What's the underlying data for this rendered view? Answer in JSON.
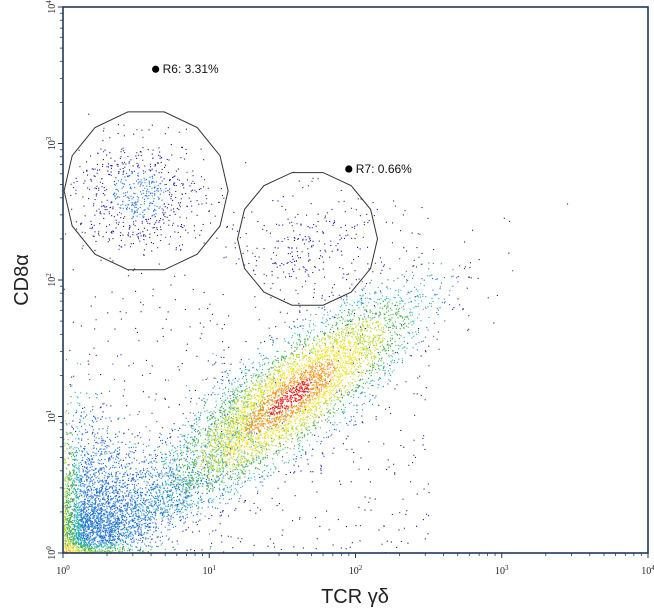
{
  "chart_data": {
    "type": "scatter",
    "subtype": "flow-cytometry density dot plot",
    "title": "",
    "xlabel": "TCR γδ",
    "ylabel": "CD8α",
    "xscale": "log",
    "yscale": "log",
    "xlim": [
      1,
      10000
    ],
    "ylim": [
      1,
      10000
    ],
    "x_ticks": [
      {
        "value": 1,
        "mantissa": "10",
        "exp": "0"
      },
      {
        "value": 10,
        "mantissa": "10",
        "exp": "1"
      },
      {
        "value": 100,
        "mantissa": "10",
        "exp": "2"
      },
      {
        "value": 1000,
        "mantissa": "10",
        "exp": "3"
      },
      {
        "value": 10000,
        "mantissa": "10",
        "exp": "4"
      }
    ],
    "y_ticks": [
      {
        "value": 1,
        "mantissa": "10",
        "exp": "0"
      },
      {
        "value": 10,
        "mantissa": "10",
        "exp": "1"
      },
      {
        "value": 100,
        "mantissa": "10",
        "exp": "2"
      },
      {
        "value": 1000,
        "mantissa": "10",
        "exp": "3"
      },
      {
        "value": 10000,
        "mantissa": "10",
        "exp": "4"
      }
    ],
    "gates": [
      {
        "label": "R6: 3.31%",
        "name": "R6",
        "percent": 3.31,
        "center_x": 3.7,
        "center_y": 450,
        "label_x": 4.3,
        "label_y": 3500
      },
      {
        "label": "R7: 0.66%",
        "name": "R7",
        "percent": 0.66,
        "center_x": 47,
        "center_y": 200,
        "label_x": 90,
        "label_y": 650
      }
    ],
    "populations": [
      {
        "description": "main diagonal population",
        "center_x": 36,
        "center_y": 14,
        "count": 5000
      },
      {
        "description": "R6 gated population",
        "center_x": 3.3,
        "center_y": 420,
        "count": 700
      },
      {
        "description": "R7 gated population",
        "center_x": 45,
        "center_y": 170,
        "count": 200
      },
      {
        "description": "double-negative cluster near origin",
        "center_x": 1.4,
        "center_y": 2,
        "count": 2500
      }
    ],
    "density_colors": [
      "#1a1aa0",
      "#1f6fd6",
      "#2bb0b0",
      "#3cb043",
      "#b7d82a",
      "#f2e11b",
      "#f79a1d",
      "#e8231c"
    ],
    "grid": false,
    "legend": "none"
  }
}
